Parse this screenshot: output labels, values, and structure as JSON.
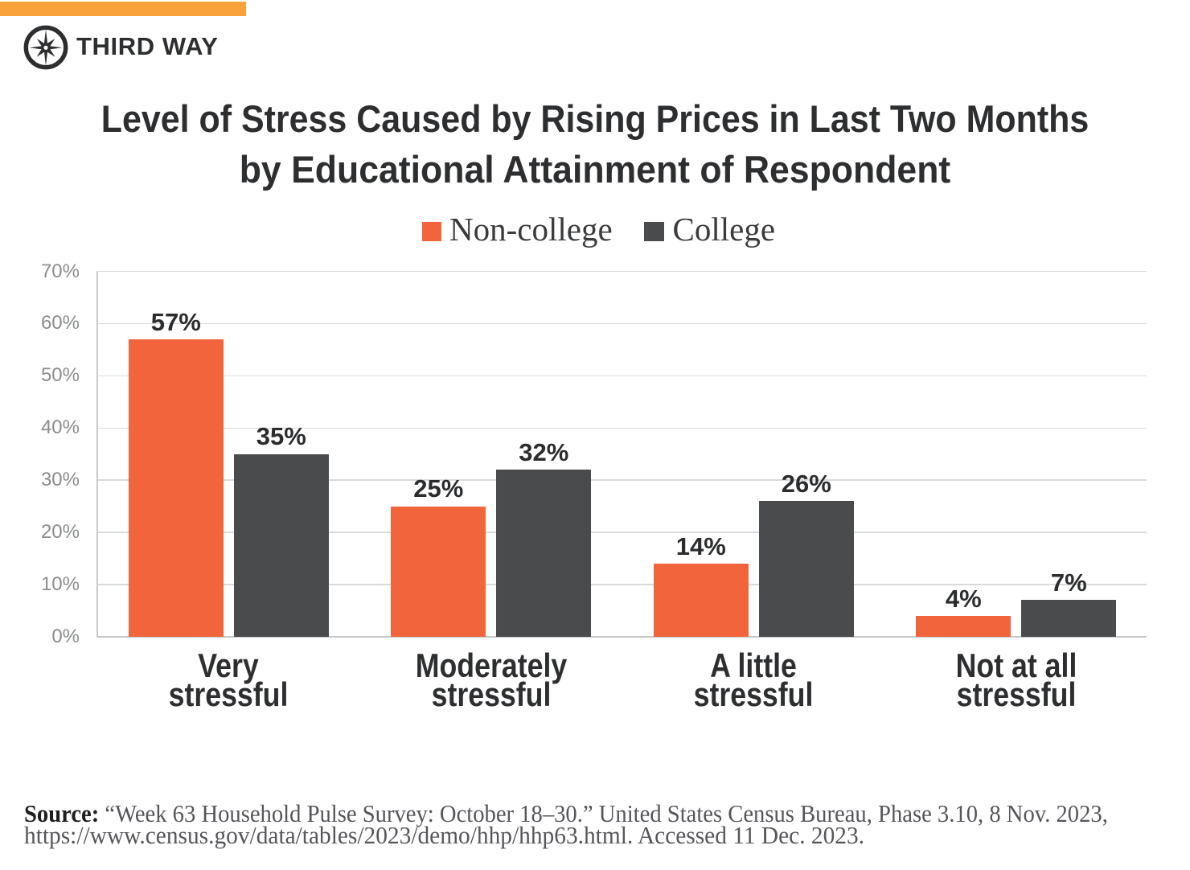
{
  "brand": {
    "name": "THIRD WAY",
    "accent_bar_color": "#f9a13b",
    "logo_icon": "compass-star-icon",
    "logo_color": "#2d2e30"
  },
  "title": {
    "line1": "Level of Stress Caused by Rising Prices in Last Two Months",
    "line2": "by Educational Attainment of Respondent"
  },
  "legend": {
    "items": [
      {
        "label": "Non-college",
        "color": "#f2643c"
      },
      {
        "label": "College",
        "color": "#4a4b4d"
      }
    ]
  },
  "chart_data": {
    "type": "bar",
    "title": "Level of Stress Caused by Rising Prices in Last Two Months by Educational Attainment of Respondent",
    "categories": [
      "Very stressful",
      "Moderately stressful",
      "A little stressful",
      "Not at all stressful"
    ],
    "category_label_lines": [
      [
        "Very",
        "stressful"
      ],
      [
        "Moderately",
        "stressful"
      ],
      [
        "A little",
        "stressful"
      ],
      [
        "Not at all",
        "stressful"
      ]
    ],
    "series": [
      {
        "name": "Non-college",
        "color": "#f2643c",
        "values": [
          57,
          25,
          14,
          4
        ]
      },
      {
        "name": "College",
        "color": "#4a4b4d",
        "values": [
          35,
          32,
          26,
          7
        ]
      }
    ],
    "value_suffix": "%",
    "xlabel": "",
    "ylabel": "",
    "ylim": [
      0,
      70
    ],
    "yticks": [
      0,
      10,
      20,
      30,
      40,
      50,
      60,
      70
    ],
    "ytick_suffix": "%",
    "grid": "horizontal",
    "legend_position": "top",
    "gridline_color": "#d9dadb",
    "axis_line_color": "#c7c8ca"
  },
  "source": {
    "label": "Source:",
    "line1": "“Week 63 Household Pulse Survey: October 18–30.” United States Census Bureau, Phase 3.10, 8 Nov. 2023,",
    "line2": "https://www.census.gov/data/tables/2023/demo/hhp/hhp63.html. Accessed 11 Dec. 2023."
  }
}
